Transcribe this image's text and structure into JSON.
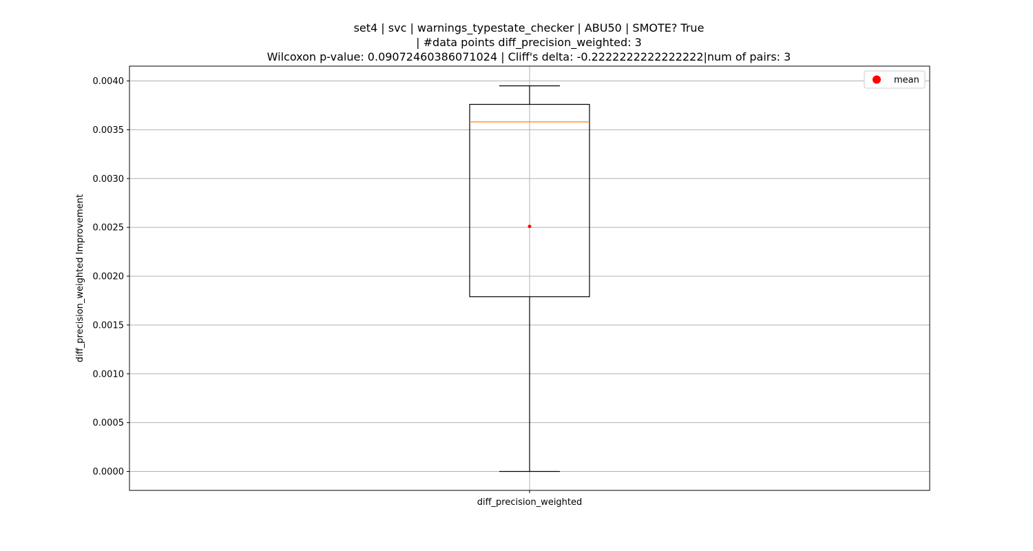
{
  "chart_data": {
    "type": "box",
    "title_lines": [
      "set4 | svc | warnings_typestate_checker | ABU50 | SMOTE? True",
      "| #data points diff_precision_weighted: 3",
      "Wilcoxon p-value: 0.09072460386071024 | Cliff's delta: -0.2222222222222222|num of pairs: 3"
    ],
    "ylabel": "diff_precision_weighted Improvement",
    "categories": [
      "diff_precision_weighted"
    ],
    "ylim": [
      -0.0002,
      0.00415
    ],
    "yticks": [
      0.0,
      0.0005,
      0.001,
      0.0015,
      0.002,
      0.0025,
      0.003,
      0.0035,
      0.004
    ],
    "ytick_labels": [
      "0.0000",
      "0.0005",
      "0.0010",
      "0.0015",
      "0.0020",
      "0.0025",
      "0.0030",
      "0.0035",
      "0.0040"
    ],
    "grid": true,
    "legend": {
      "position": "top-right",
      "entries": [
        "mean"
      ]
    },
    "boxes": [
      {
        "category": "diff_precision_weighted",
        "whisker_low": 0.0,
        "q1": 0.00179,
        "median": 0.00358,
        "q3": 0.00376,
        "whisker_high": 0.00395,
        "mean": 0.00251
      }
    ],
    "colors": {
      "box": "#000000",
      "median": "#ff7f0e",
      "mean": "#ff0000",
      "grid": "#b0b0b0"
    }
  }
}
